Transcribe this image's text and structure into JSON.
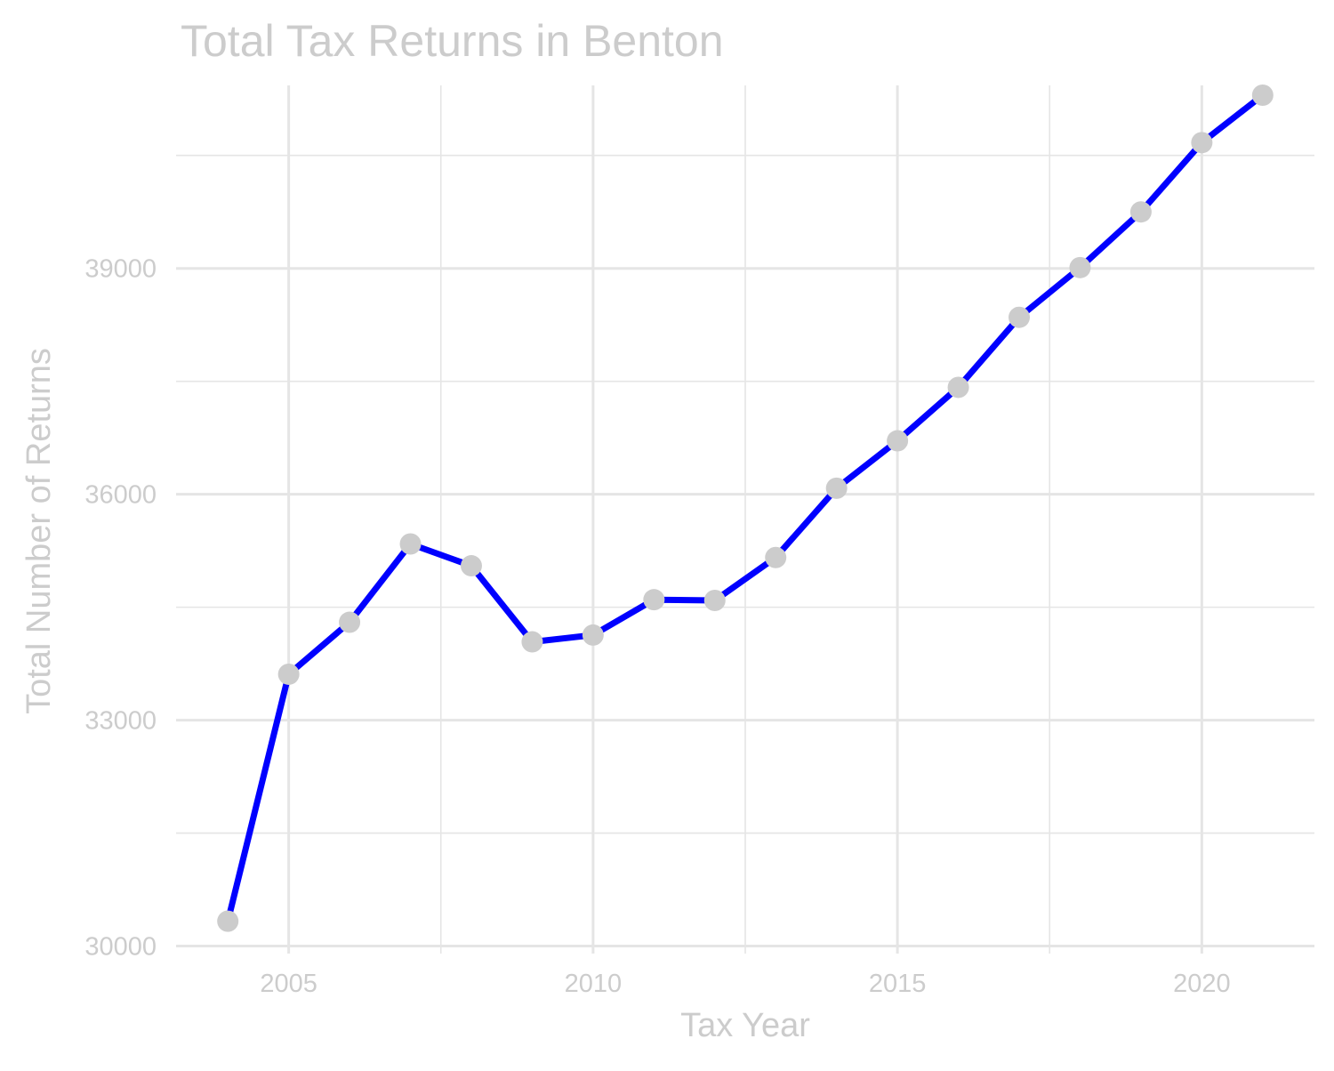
{
  "chart_data": {
    "type": "line",
    "title": "Total Tax Returns in Benton",
    "xlabel": "Tax Year",
    "ylabel": "Total Number of Returns",
    "x": [
      2004,
      2005,
      2006,
      2007,
      2008,
      2009,
      2010,
      2011,
      2012,
      2013,
      2014,
      2015,
      2016,
      2017,
      2018,
      2019,
      2020,
      2021
    ],
    "series": [
      {
        "values": [
          30330,
          33610,
          34300,
          35340,
          35050,
          34040,
          34130,
          34600,
          34590,
          35160,
          36080,
          36710,
          37420,
          38350,
          39010,
          39750,
          40670,
          41300
        ]
      }
    ],
    "xlim": [
      2003.15,
      2021.85
    ],
    "ylim": [
      29900,
      41430
    ],
    "x_ticks": [
      "2005",
      "2010",
      "2015",
      "2020"
    ],
    "y_ticks": [
      "30000",
      "33000",
      "36000",
      "39000"
    ],
    "grid": true,
    "legend": "none",
    "colors": {
      "line": "#0000ff",
      "points": "#cccccc",
      "text": "#cccccc",
      "grid": "#e5e5e5",
      "background": "#ffffff"
    }
  }
}
